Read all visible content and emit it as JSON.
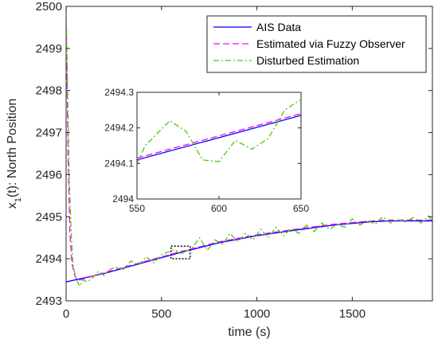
{
  "chart_data": {
    "type": "line",
    "xlabel": "time (s)",
    "ylabel": "x_1(t): North Position",
    "xlim": [
      0,
      1920
    ],
    "ylim": [
      2493,
      2500
    ],
    "xticks": [
      "0",
      "500",
      "1000",
      "1500"
    ],
    "yticks": [
      "2493",
      "2494",
      "2495",
      "2496",
      "2497",
      "2498",
      "2499",
      "2500"
    ],
    "grid": false,
    "legend_position": "top-right",
    "series": [
      {
        "name": "AIS Data",
        "color": "#0000ff",
        "style": "solid",
        "x": [
          0,
          200,
          400,
          600,
          800,
          1000,
          1200,
          1400,
          1600,
          1700,
          1920
        ],
        "y": [
          2493.45,
          2493.65,
          2493.9,
          2494.15,
          2494.38,
          2494.55,
          2494.68,
          2494.8,
          2494.88,
          2494.9,
          2494.9
        ]
      },
      {
        "name": "Estimated via Fuzzy Observer",
        "color": "#ff00ff",
        "style": "dashed",
        "x": [
          0,
          10,
          20,
          30,
          45,
          60,
          200,
          400,
          600,
          800,
          1000,
          1200,
          1400,
          1600,
          1700,
          1920
        ],
        "y": [
          2500,
          2496.5,
          2494.6,
          2493.9,
          2493.6,
          2493.48,
          2493.67,
          2493.92,
          2494.17,
          2494.4,
          2494.57,
          2494.7,
          2494.82,
          2494.9,
          2494.92,
          2494.92
        ]
      },
      {
        "name": "Disturbed Estimation",
        "color": "#4cc800",
        "style": "dashdot",
        "x": [
          0,
          8,
          16,
          25,
          35,
          50,
          70,
          90,
          110,
          140,
          170,
          200,
          230,
          260,
          300,
          340,
          380,
          420,
          460,
          500,
          530,
          570,
          600,
          630,
          660,
          700,
          740,
          780,
          820,
          860,
          900,
          940,
          980,
          1020,
          1060,
          1100,
          1140,
          1180,
          1220,
          1260,
          1300,
          1340,
          1380,
          1420,
          1460,
          1500,
          1540,
          1580,
          1620,
          1660,
          1700,
          1740,
          1780,
          1820,
          1860,
          1900,
          1920
        ],
        "y": [
          2500,
          2498,
          2496,
          2494.8,
          2493.9,
          2493.55,
          2493.35,
          2493.5,
          2493.45,
          2493.55,
          2493.7,
          2493.6,
          2493.75,
          2493.8,
          2493.75,
          2493.95,
          2493.85,
          2494.05,
          2493.9,
          2494.1,
          2494.15,
          2494.22,
          2494.1,
          2494.18,
          2494.25,
          2494.5,
          2494.2,
          2494.45,
          2494.35,
          2494.6,
          2494.4,
          2494.6,
          2494.45,
          2494.7,
          2494.5,
          2494.75,
          2494.55,
          2494.72,
          2494.6,
          2494.8,
          2494.65,
          2494.85,
          2494.7,
          2494.82,
          2494.75,
          2494.95,
          2494.8,
          2494.92,
          2494.82,
          2495.0,
          2494.85,
          2494.92,
          2494.88,
          2494.98,
          2494.85,
          2495.02,
          2494.9
        ]
      }
    ],
    "zoom_box": {
      "xlim": [
        550,
        650
      ],
      "ylim": [
        2494.0,
        2494.3
      ]
    },
    "inset": {
      "xlim": [
        550,
        650
      ],
      "ylim": [
        2494,
        2494.3
      ],
      "xticks": [
        "550",
        "600",
        "650"
      ],
      "yticks": [
        "2494",
        "2494.1",
        "2494.2",
        "2494.3"
      ],
      "series": [
        {
          "name": "AIS Data",
          "color": "#0000ff",
          "style": "solid",
          "x": [
            550,
            650
          ],
          "y": [
            2494.11,
            2494.235
          ]
        },
        {
          "name": "Estimated via Fuzzy Observer",
          "color": "#ff00ff",
          "style": "dashed",
          "x": [
            550,
            650
          ],
          "y": [
            2494.115,
            2494.24
          ]
        },
        {
          "name": "Disturbed Estimation",
          "color": "#4cc800",
          "style": "dashdot",
          "x": [
            550,
            555,
            570,
            580,
            590,
            600,
            610,
            620,
            630,
            640,
            650
          ],
          "y": [
            2494.1,
            2494.15,
            2494.22,
            2494.19,
            2494.11,
            2494.105,
            2494.165,
            2494.14,
            2494.17,
            2494.25,
            2494.28
          ]
        }
      ]
    }
  }
}
